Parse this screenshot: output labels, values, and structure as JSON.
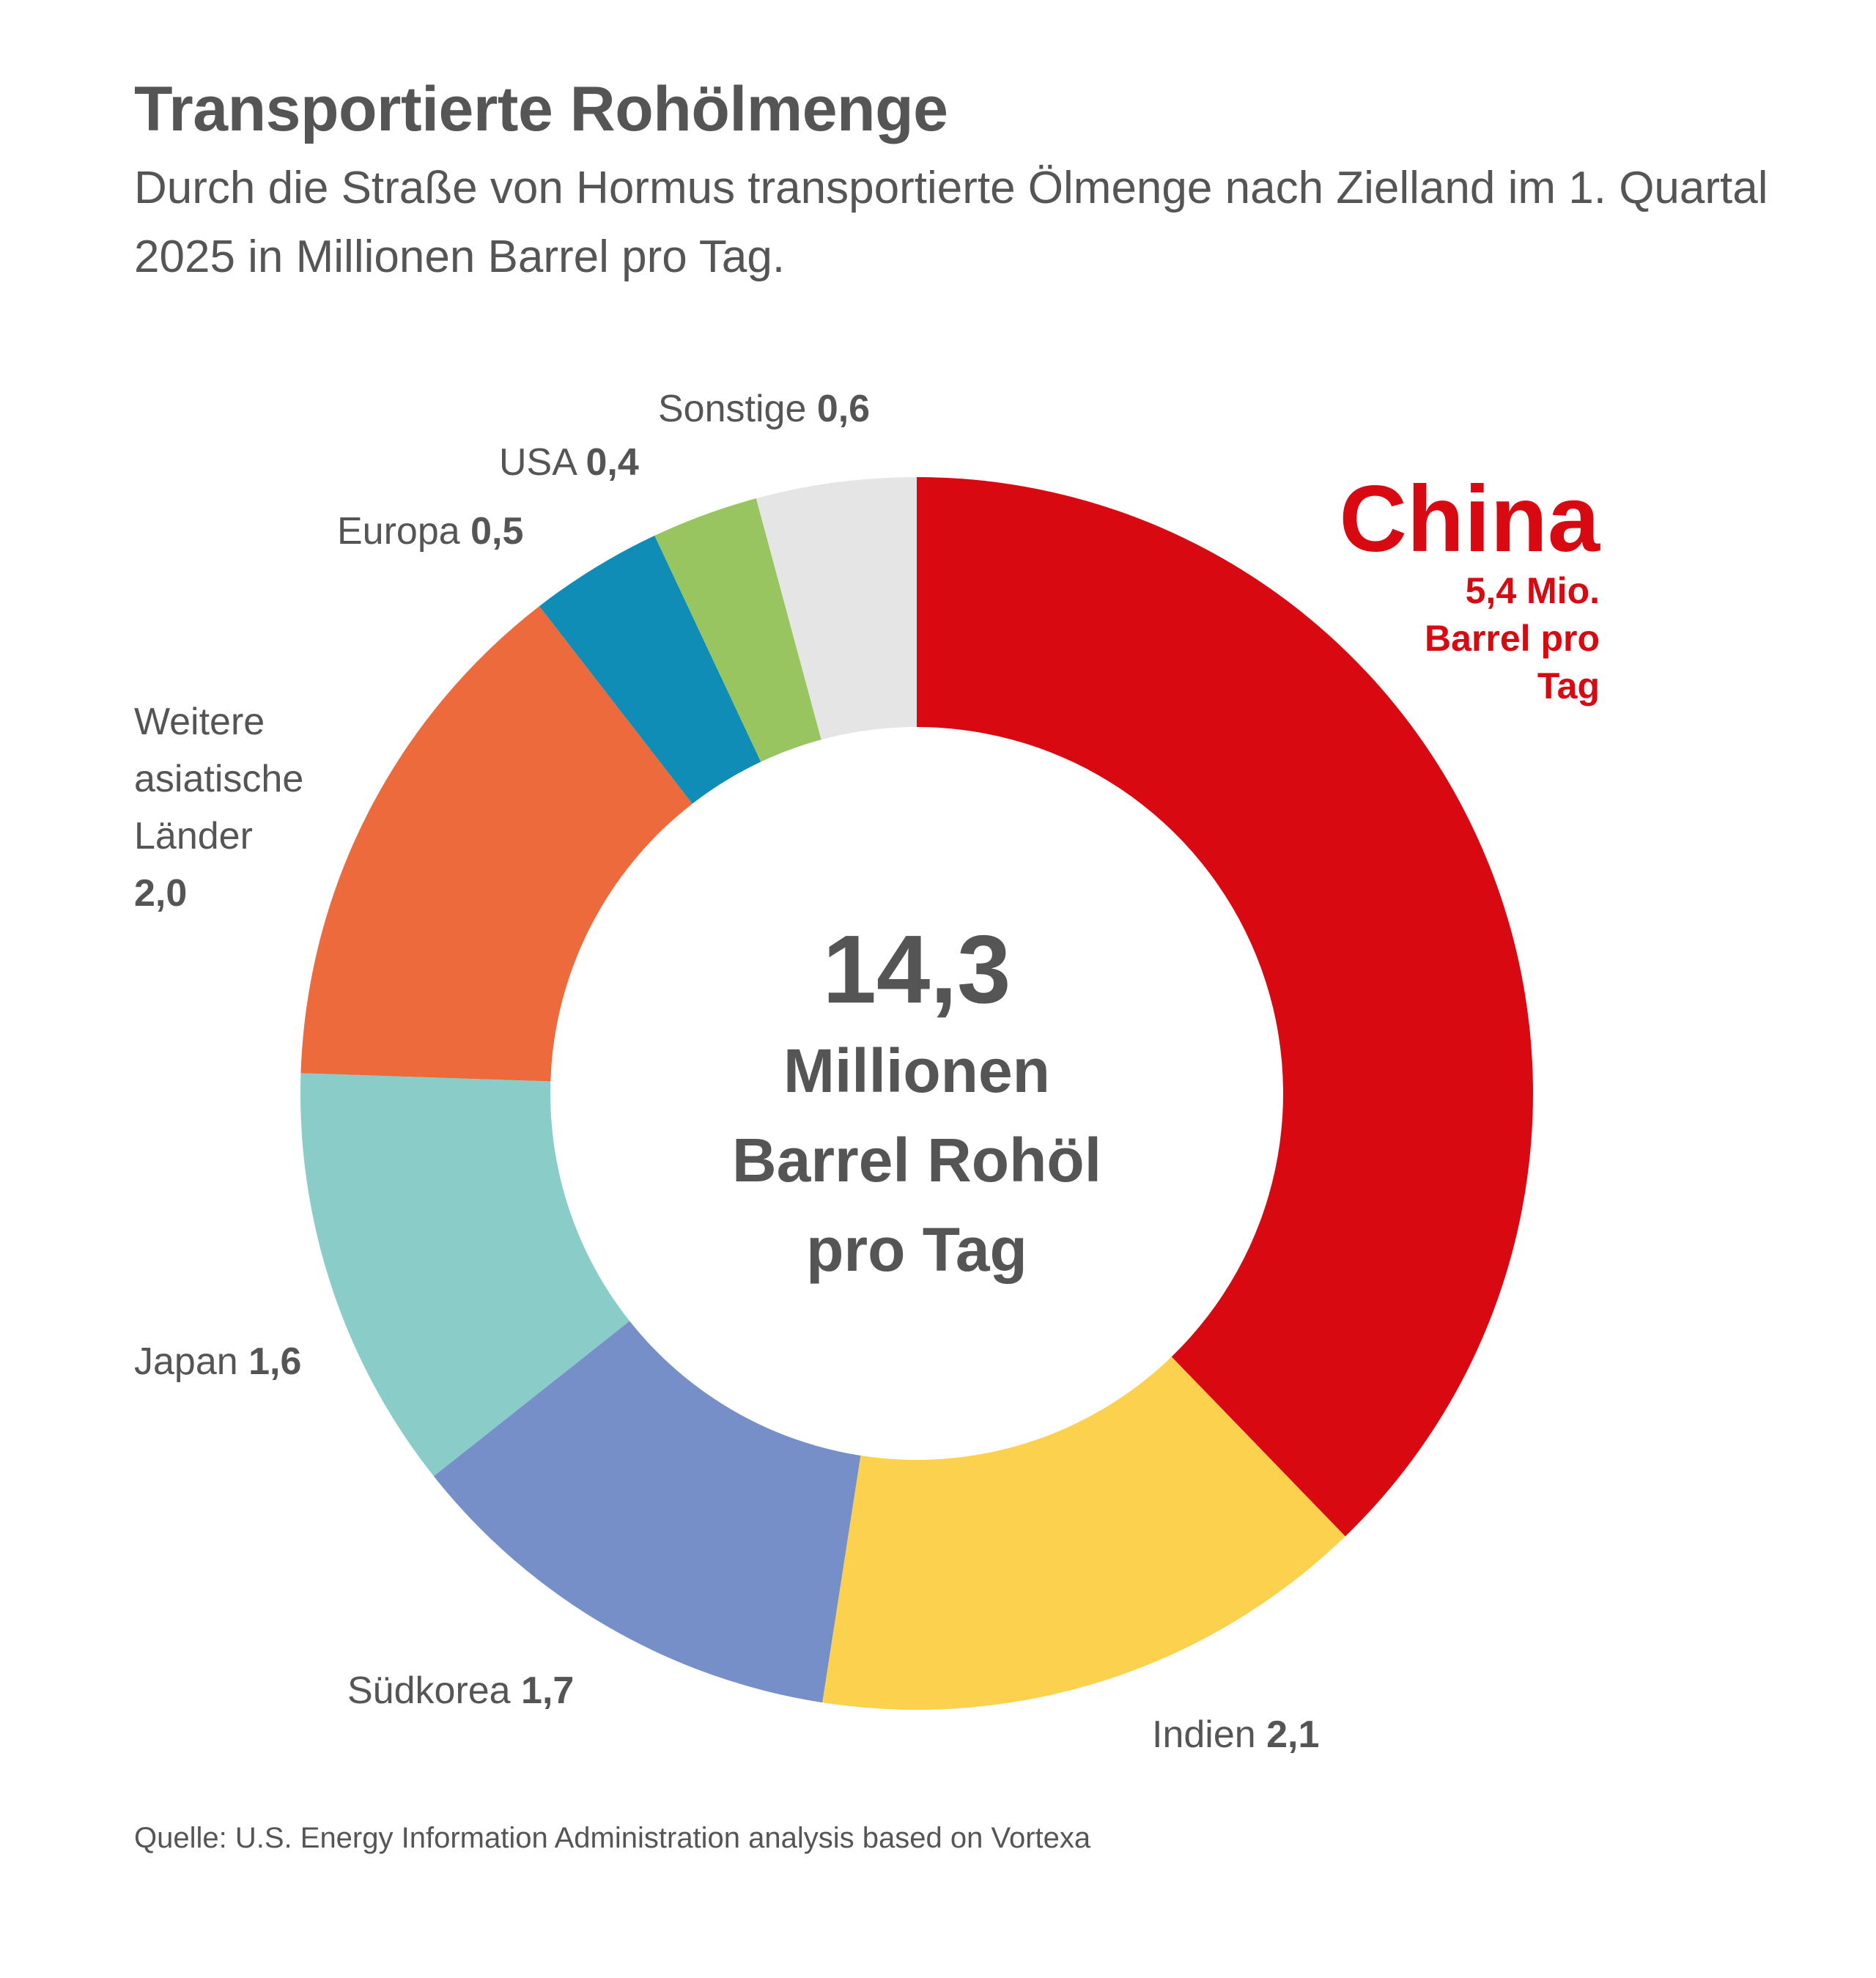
{
  "title": "Transportierte Rohölmenge",
  "subtitle": "Durch die Straße von Hormus transportierte Ölmenge nach Zielland im 1. Quartal 2025 in Millionen Barrel pro Tag.",
  "source": "Quelle: U.S. Energy Information Administration analysis based on Vortexa",
  "center": {
    "value": "14,3",
    "lines": [
      "Millionen",
      "Barrel Rohöl",
      "pro Tag"
    ]
  },
  "chart_data": {
    "type": "pie",
    "style": "donut",
    "total": 14.3,
    "categories": [
      "China",
      "Indien",
      "Südkorea",
      "Japan",
      "Weitere asiatische Länder",
      "Europa",
      "USA",
      "Sonstige"
    ],
    "values": [
      5.4,
      2.1,
      1.7,
      1.6,
      2.0,
      0.5,
      0.4,
      0.6
    ],
    "colors": [
      "#d90912",
      "#fcd14d",
      "#768fc8",
      "#8acdc8",
      "#ec6a3c",
      "#0f8db7",
      "#98c560",
      "#e5e5e5"
    ],
    "labels": [
      {
        "name": [
          "China"
        ],
        "value": [
          "5,4 Mio.",
          "Barrel pro",
          "Tag"
        ],
        "color": "#d90912"
      },
      {
        "name": [
          "Indien"
        ],
        "value": [
          "2,1"
        ]
      },
      {
        "name": [
          "Südkorea"
        ],
        "value": [
          "1,7"
        ]
      },
      {
        "name": [
          "Japan"
        ],
        "value": [
          "1,6"
        ]
      },
      {
        "name": [
          "Weitere",
          "asiatische",
          "Länder"
        ],
        "value": [
          "2,0"
        ]
      },
      {
        "name": [
          "Europa"
        ],
        "value": [
          "0,5"
        ]
      },
      {
        "name": [
          "USA"
        ],
        "value": [
          "0,4"
        ]
      },
      {
        "name": [
          "Sonstige"
        ],
        "value": [
          "0,6"
        ]
      }
    ]
  }
}
